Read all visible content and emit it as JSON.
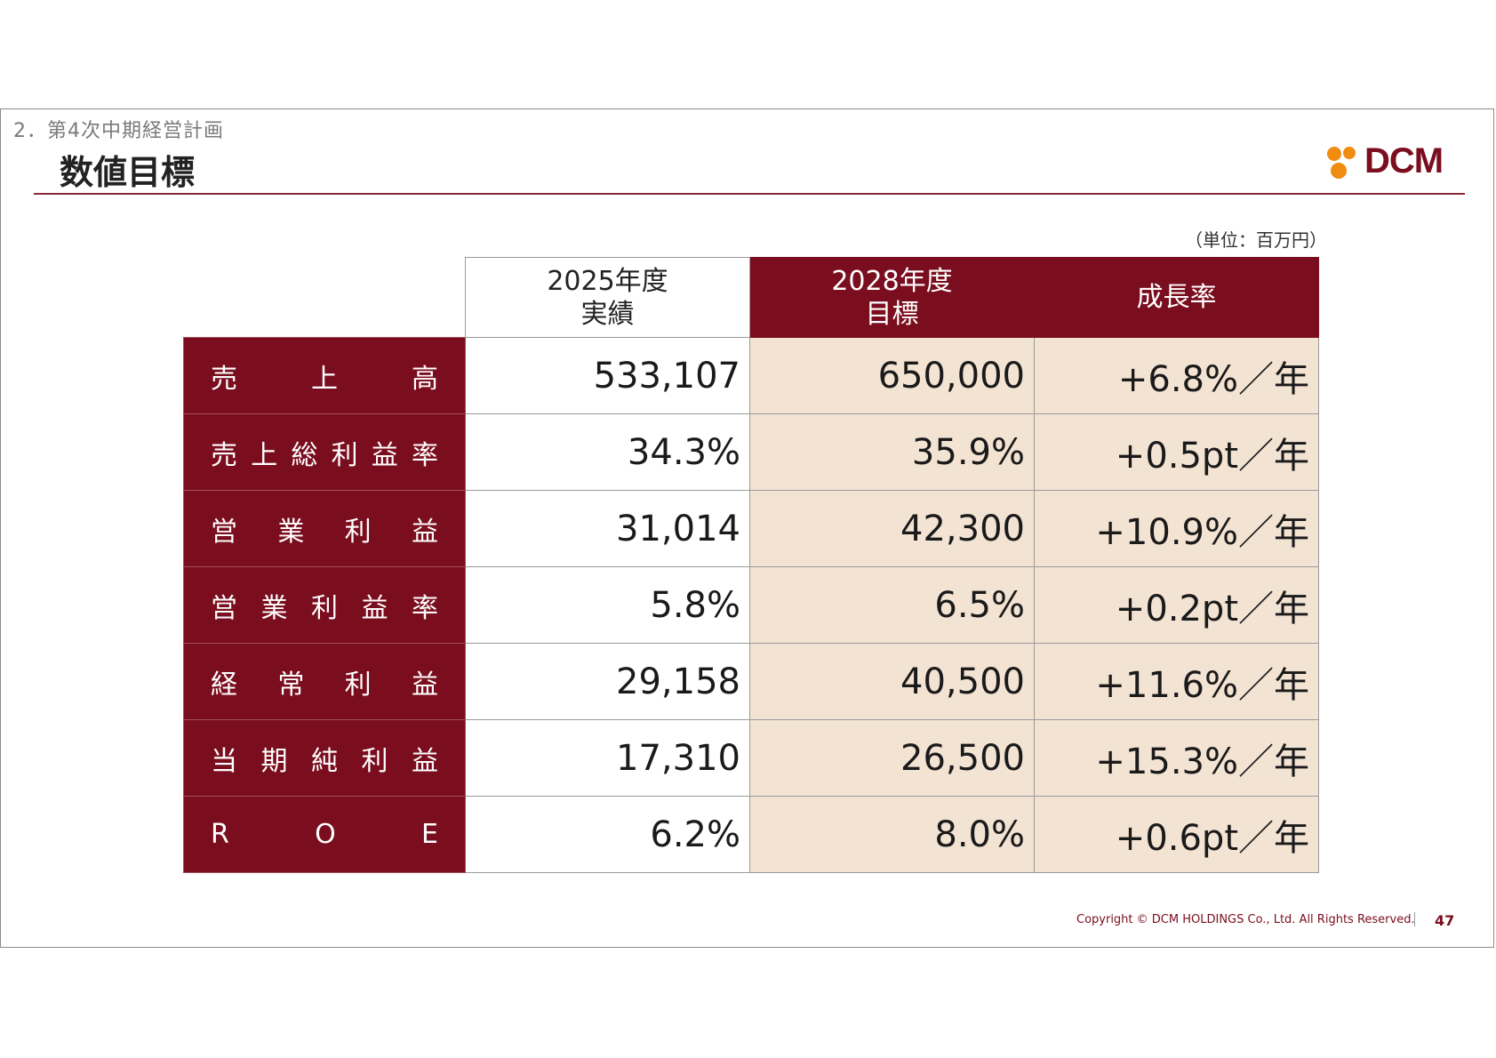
{
  "header": {
    "section": "2．第4次中期経営計画",
    "title": "数値目標",
    "logo_text": "DCM"
  },
  "unit_note": "（単位：百万円）",
  "table": {
    "columns": [
      {
        "line1": "2025年度",
        "line2": "実績"
      },
      {
        "line1": "2028年度",
        "line2": "目標"
      },
      {
        "line1": "成長率",
        "line2": ""
      }
    ],
    "rows": [
      {
        "label_chars": [
          "売",
          "上",
          "高"
        ],
        "actual": "533,107",
        "target": "650,000",
        "growth": "+6.8%／年"
      },
      {
        "label_chars": [
          "売",
          "上",
          "総",
          "利",
          "益",
          "率"
        ],
        "actual": "34.3%",
        "target": "35.9%",
        "growth": "+0.5pt／年"
      },
      {
        "label_chars": [
          "営",
          "業",
          "利",
          "益"
        ],
        "actual": "31,014",
        "target": "42,300",
        "growth": "+10.9%／年"
      },
      {
        "label_chars": [
          "営",
          "業",
          "利",
          "益",
          "率"
        ],
        "actual": "5.8%",
        "target": "6.5%",
        "growth": "+0.2pt／年"
      },
      {
        "label_chars": [
          "経",
          "常",
          "利",
          "益"
        ],
        "actual": "29,158",
        "target": "40,500",
        "growth": "+11.6%／年"
      },
      {
        "label_chars": [
          "当",
          "期",
          "純",
          "利",
          "益"
        ],
        "actual": "17,310",
        "target": "26,500",
        "growth": "+15.3%／年"
      },
      {
        "label_chars": [
          "R",
          "O",
          "E"
        ],
        "actual": "6.2%",
        "target": "8.0%",
        "growth": "+0.6pt／年"
      }
    ]
  },
  "footer": {
    "copyright": "Copyright © DCM HOLDINGS Co., Ltd. All Rights Reserved.",
    "page_number": "47"
  },
  "colors": {
    "brand_dark_red": "#7a0d1e",
    "target_cell_bg": "#f3e3d3",
    "logo_orange": "#f08c10"
  }
}
